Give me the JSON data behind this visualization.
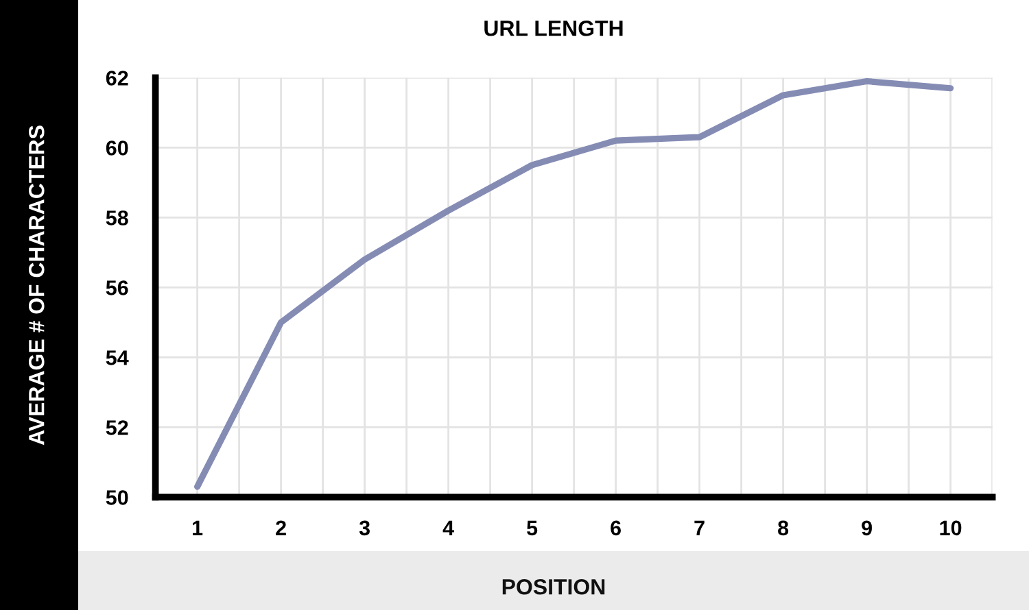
{
  "chart_data": {
    "type": "line",
    "title": "URL LENGTH",
    "xlabel": "POSITION",
    "ylabel": "AVERAGE # OF CHARACTERS",
    "x": [
      1,
      2,
      3,
      4,
      5,
      6,
      7,
      8,
      9,
      10
    ],
    "xlim": [
      0.5,
      10.5
    ],
    "xticks": [
      1,
      {
        "value": 1.5,
        "label": null
      },
      2,
      {
        "value": 2.5,
        "label": null
      },
      3,
      {
        "value": 3.5,
        "label": null
      },
      4,
      {
        "value": 4.5,
        "label": null
      },
      5,
      {
        "value": 5.5,
        "label": null
      },
      6,
      {
        "value": 6.5,
        "label": null
      },
      7,
      {
        "value": 7.5,
        "label": null
      },
      8,
      {
        "value": 8.5,
        "label": null
      },
      9,
      {
        "value": 9.5,
        "label": null
      },
      10,
      {
        "value": 10.5,
        "label": null
      }
    ],
    "ylim": [
      50,
      62
    ],
    "yticks": [
      50,
      52,
      54,
      56,
      58,
      60,
      62
    ],
    "grid": true,
    "series": [
      {
        "color": "#858cb4",
        "values": [
          50.3,
          55.0,
          56.8,
          58.2,
          59.5,
          60.2,
          60.3,
          61.5,
          61.9,
          61.7
        ]
      }
    ]
  }
}
